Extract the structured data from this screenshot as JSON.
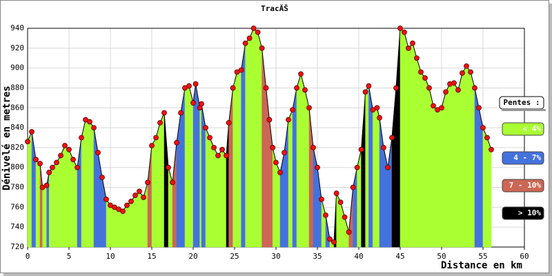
{
  "chart_data": {
    "type": "area",
    "title": "TracĂŠ",
    "xlabel": "Distance en km",
    "ylabel": "Dénivelé en metres",
    "xlim": [
      0,
      60
    ],
    "xticks": [
      0,
      5,
      10,
      15,
      20,
      25,
      30,
      35,
      40,
      45,
      50,
      55,
      60
    ],
    "ylim": [
      720,
      940
    ],
    "yticks": [
      720,
      740,
      760,
      780,
      800,
      820,
      840,
      860,
      880,
      900,
      920,
      940
    ],
    "grid": true,
    "legend_title": "Pentes :",
    "legend": [
      {
        "name": "< 4%",
        "color": "#aaff33"
      },
      {
        "name": "4 - 7%",
        "color": "#4472dd"
      },
      {
        "name": "7 - 10%",
        "color": "#cc6655"
      },
      {
        "name": "> 10%",
        "color": "#000000"
      }
    ],
    "line_color": "#000000",
    "marker_color": "#ee1111",
    "x": [
      0,
      0.5,
      1,
      1.5,
      1.8,
      2.3,
      2.6,
      3,
      3.5,
      4,
      4.5,
      5,
      5.5,
      6,
      6.5,
      7,
      7.5,
      8,
      8.5,
      9,
      9.5,
      10,
      10.5,
      11,
      11.5,
      12,
      12.5,
      13,
      13.5,
      14,
      14.5,
      15,
      15.5,
      16,
      16.5,
      17,
      17.5,
      18,
      18.5,
      19,
      19.5,
      20,
      20.3,
      20.8,
      21,
      21.5,
      22,
      22.5,
      23,
      23.5,
      24,
      24.3,
      24.8,
      25.3,
      25.8,
      26.3,
      26.8,
      27.3,
      27.8,
      28.3,
      28.8,
      29.2,
      29.6,
      30,
      30.5,
      31,
      31.5,
      32,
      32.5,
      33,
      33.5,
      34,
      34.5,
      35,
      35.5,
      36,
      36.5,
      37,
      37.3,
      37.8,
      38.3,
      38.8,
      39.3,
      39.8,
      40.3,
      40.8,
      41.2,
      41.7,
      42.2,
      42.5,
      43,
      43.5,
      44,
      44.5,
      45,
      45.5,
      46,
      46.5,
      47,
      47.5,
      48,
      48.5,
      49,
      49.5,
      50,
      50.5,
      51,
      51.5,
      52,
      52.5,
      53,
      53.5,
      54,
      54.5,
      55,
      55.5,
      56
    ],
    "values": [
      826,
      836,
      808,
      804,
      780,
      782,
      795,
      800,
      805,
      812,
      822,
      818,
      808,
      800,
      830,
      848,
      846,
      840,
      815,
      790,
      768,
      762,
      760,
      758,
      756,
      762,
      766,
      772,
      776,
      770,
      785,
      822,
      830,
      845,
      855,
      800,
      785,
      825,
      855,
      880,
      882,
      865,
      884,
      860,
      864,
      840,
      830,
      820,
      812,
      818,
      812,
      845,
      880,
      896,
      898,
      925,
      930,
      940,
      936,
      920,
      880,
      848,
      820,
      805,
      795,
      815,
      848,
      858,
      880,
      894,
      878,
      860,
      820,
      800,
      768,
      752,
      728,
      725,
      774,
      765,
      750,
      735,
      780,
      800,
      818,
      876,
      882,
      858,
      860,
      850,
      820,
      800,
      830,
      880,
      940,
      936,
      920,
      925,
      910,
      896,
      890,
      880,
      862,
      858,
      860,
      876,
      884,
      885,
      878,
      895,
      902,
      896,
      880,
      860,
      840,
      830,
      818
    ],
    "slope_class": [
      0,
      1,
      0,
      2,
      0,
      1,
      0,
      0,
      0,
      0,
      0,
      0,
      0,
      1,
      0,
      0,
      0,
      1,
      1,
      1,
      0,
      0,
      0,
      0,
      0,
      0,
      0,
      0,
      0,
      0,
      2,
      0,
      0,
      0,
      3,
      0,
      2,
      1,
      1,
      0,
      0,
      1,
      1,
      0,
      1,
      0,
      0,
      0,
      0,
      0,
      3,
      2,
      0,
      0,
      1,
      0,
      0,
      0,
      0,
      2,
      2,
      2,
      0,
      0,
      1,
      1,
      0,
      1,
      0,
      0,
      0,
      2,
      1,
      1,
      0,
      1,
      0,
      3,
      0,
      0,
      0,
      2,
      1,
      0,
      3,
      0,
      1,
      0,
      0,
      1,
      1,
      1,
      3,
      3,
      0,
      0,
      0,
      0,
      0,
      0,
      0,
      0,
      0,
      0,
      0,
      0,
      0,
      0,
      0,
      0,
      0,
      0,
      1,
      1,
      0,
      0,
      null
    ]
  }
}
